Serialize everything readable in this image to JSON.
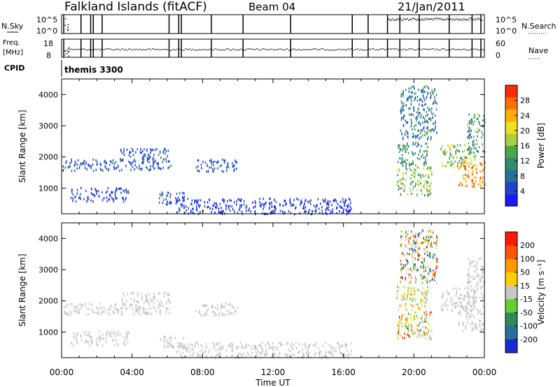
{
  "header": {
    "title": "Falkland Islands (fitACF)",
    "beam": "Beam 04",
    "date": "21/Jan/2011"
  },
  "top_panels": {
    "nsky_label": "N.Sky",
    "nsky_ticks": [
      "10^5",
      "10^0"
    ],
    "nsearch_label": "N.Search",
    "nsearch_ticks": [
      "10^5",
      "10^0"
    ],
    "freq_label_1": "Freq.",
    "freq_label_2": "[MHz]",
    "freq_ticks": [
      "18",
      "8"
    ],
    "nave_label": "Nave",
    "nave_ticks": [
      "60",
      "0"
    ],
    "cpid_label": "CPID",
    "cpid_value": "themis 3300",
    "cpid_change_hours": [
      0.12,
      1.1,
      1.65,
      1.8,
      2.3,
      6.1,
      6.65,
      6.8,
      8.5,
      10.3,
      13.0,
      16.5,
      17.4,
      18.5,
      19.2,
      20.3,
      22.0,
      23.3,
      23.8
    ]
  },
  "chart_data": [
    {
      "type": "heatmap",
      "panel": "power",
      "xlabel": "Time UT",
      "ylabel": "Slant Range [km]",
      "x_ticks": [
        "00:00",
        "04:00",
        "08:00",
        "12:00",
        "16:00",
        "20:00",
        "00:00"
      ],
      "x_range_hours": [
        0,
        24
      ],
      "y_ticks": [
        1000,
        2000,
        3000,
        4000
      ],
      "y_range_km": [
        180,
        4500
      ],
      "colorbar": {
        "label": "Power [dB]",
        "ticks": [
          "28",
          "24",
          "20",
          "16",
          "12",
          "8",
          "4"
        ],
        "range": [
          0,
          32
        ],
        "colors": [
          "#1a1aff",
          "#2244cc",
          "#2a6e9a",
          "#2e8b6e",
          "#4aa84a",
          "#a8d040",
          "#f0e020",
          "#ffb000",
          "#ff7000",
          "#ff2a00"
        ]
      },
      "regions": [
        {
          "t0": 0.0,
          "t1": 3.3,
          "r0": 1580,
          "r1": 1950,
          "v0": 4,
          "v1": 8
        },
        {
          "t0": 3.3,
          "t1": 6.2,
          "r0": 1600,
          "r1": 2300,
          "v0": 4,
          "v1": 8
        },
        {
          "t0": 7.6,
          "t1": 10.0,
          "r0": 1550,
          "r1": 1950,
          "v0": 4,
          "v1": 8
        },
        {
          "t0": 0.5,
          "t1": 3.8,
          "r0": 600,
          "r1": 1050,
          "v0": 3,
          "v1": 6
        },
        {
          "t0": 5.5,
          "t1": 7.0,
          "r0": 500,
          "r1": 900,
          "v0": 3,
          "v1": 7
        },
        {
          "t0": 6.5,
          "t1": 16.5,
          "r0": 200,
          "r1": 700,
          "v0": 2,
          "v1": 6
        },
        {
          "t0": 19.0,
          "t1": 21.0,
          "r0": 800,
          "r1": 1700,
          "v0": 8,
          "v1": 22
        },
        {
          "t0": 19.0,
          "t1": 20.8,
          "r0": 1750,
          "r1": 2500,
          "v0": 6,
          "v1": 16
        },
        {
          "t0": 21.5,
          "t1": 23.5,
          "r0": 1700,
          "r1": 2450,
          "v0": 10,
          "v1": 24
        },
        {
          "t0": 22.5,
          "t1": 24.0,
          "r0": 1050,
          "r1": 1900,
          "v0": 18,
          "v1": 32
        },
        {
          "t0": 23.0,
          "t1": 24.0,
          "r0": 2100,
          "r1": 3400,
          "v0": 6,
          "v1": 18
        },
        {
          "t0": 19.2,
          "t1": 21.3,
          "r0": 2600,
          "r1": 4300,
          "v0": 4,
          "v1": 14
        }
      ]
    },
    {
      "type": "heatmap",
      "panel": "velocity",
      "xlabel": "Time UT",
      "ylabel": "Slant Range [km]",
      "x_ticks": [
        "00:00",
        "04:00",
        "08:00",
        "12:00",
        "16:00",
        "20:00",
        "00:00"
      ],
      "x_range_hours": [
        0,
        24
      ],
      "y_ticks": [
        1000,
        2000,
        3000,
        4000
      ],
      "y_range_km": [
        180,
        4500
      ],
      "colorbar": {
        "label": "Velocity [m s⁻¹]",
        "ticks": [
          "200",
          "100",
          "50",
          "15",
          "-15",
          "-50",
          "-100",
          "-200"
        ],
        "colors": [
          "#1a2ad0",
          "#2a6e9a",
          "#2e8b57",
          "#66cc33",
          "#c8c8c8",
          "#ffd000",
          "#ff9900",
          "#ff5500",
          "#ff1a00"
        ]
      },
      "regions": [
        {
          "t0": 0.0,
          "t1": 3.3,
          "r0": 1580,
          "r1": 1950,
          "v0": 4,
          "v1": 4
        },
        {
          "t0": 3.3,
          "t1": 6.2,
          "r0": 1600,
          "r1": 2300,
          "v0": 4,
          "v1": 4
        },
        {
          "t0": 7.6,
          "t1": 10.0,
          "r0": 1550,
          "r1": 1950,
          "v0": 4,
          "v1": 4
        },
        {
          "t0": 0.5,
          "t1": 3.8,
          "r0": 600,
          "r1": 1050,
          "v0": 4,
          "v1": 4
        },
        {
          "t0": 5.5,
          "t1": 7.0,
          "r0": 500,
          "r1": 900,
          "v0": 4,
          "v1": 4
        },
        {
          "t0": 6.5,
          "t1": 16.5,
          "r0": 200,
          "r1": 700,
          "v0": 4,
          "v1": 4
        },
        {
          "t0": 19.0,
          "t1": 21.0,
          "r0": 800,
          "r1": 1700,
          "v0": 2,
          "v1": 8
        },
        {
          "t0": 19.0,
          "t1": 20.8,
          "r0": 1750,
          "r1": 2500,
          "v0": 3,
          "v1": 6
        },
        {
          "t0": 21.5,
          "t1": 23.5,
          "r0": 1700,
          "r1": 2450,
          "v0": 4,
          "v1": 4
        },
        {
          "t0": 22.5,
          "t1": 24.0,
          "r0": 1050,
          "r1": 1900,
          "v0": 4,
          "v1": 4
        },
        {
          "t0": 23.0,
          "t1": 24.0,
          "r0": 2100,
          "r1": 3400,
          "v0": 4,
          "v1": 4
        },
        {
          "t0": 19.2,
          "t1": 21.3,
          "r0": 2600,
          "r1": 4300,
          "v0": 0,
          "v1": 8
        }
      ]
    }
  ]
}
